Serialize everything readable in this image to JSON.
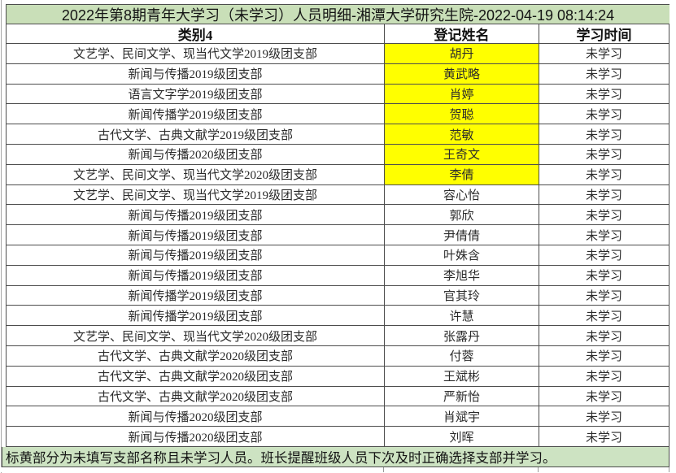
{
  "title": "2022年第8期青年大学习（未学习）人员明细-湘潭大学研究生院-2022-04-19 08:14:24",
  "table": {
    "columns": [
      "类别4",
      "登记姓名",
      "学习时间"
    ],
    "rows": [
      {
        "category": "文艺学、民间文学、现当代文学2019级团支部",
        "name": "胡丹",
        "status": "未学习",
        "highlighted": true
      },
      {
        "category": "新闻与传播2019级团支部",
        "name": "黄武略",
        "status": "未学习",
        "highlighted": true
      },
      {
        "category": "语言文字学2019级团支部",
        "name": "肖婷",
        "status": "未学习",
        "highlighted": true
      },
      {
        "category": "新闻传播学2019级团支部",
        "name": "贺聪",
        "status": "未学习",
        "highlighted": true
      },
      {
        "category": "古代文学、古典文献学2019级团支部",
        "name": "范敏",
        "status": "未学习",
        "highlighted": true
      },
      {
        "category": "新闻与传播2020级团支部",
        "name": "王奇文",
        "status": "未学习",
        "highlighted": true
      },
      {
        "category": "文艺学、民间文学、现当代文学2020级团支部",
        "name": "李倩",
        "status": "未学习",
        "highlighted": true
      },
      {
        "category": "文艺学、民间文学、现当代文学2019级团支部",
        "name": "容心怡",
        "status": "未学习",
        "highlighted": false
      },
      {
        "category": "新闻与传播2019级团支部",
        "name": "郭欣",
        "status": "未学习",
        "highlighted": false
      },
      {
        "category": "新闻与传播2019级团支部",
        "name": "尹倩倩",
        "status": "未学习",
        "highlighted": false
      },
      {
        "category": "新闻与传播2019级团支部",
        "name": "叶姝含",
        "status": "未学习",
        "highlighted": false
      },
      {
        "category": "新闻与传播2019级团支部",
        "name": "李旭华",
        "status": "未学习",
        "highlighted": false
      },
      {
        "category": "新闻传播学2019级团支部",
        "name": "官其玲",
        "status": "未学习",
        "highlighted": false
      },
      {
        "category": "新闻传播学2019级团支部",
        "name": "许慧",
        "status": "未学习",
        "highlighted": false
      },
      {
        "category": "文艺学、民间文学、现当代文学2020级团支部",
        "name": "张露丹",
        "status": "未学习",
        "highlighted": false
      },
      {
        "category": "古代文学、古典文献学2020级团支部",
        "name": "付蓉",
        "status": "未学习",
        "highlighted": false
      },
      {
        "category": "古代文学、古典文献学2020级团支部",
        "name": "王斌彬",
        "status": "未学习",
        "highlighted": false
      },
      {
        "category": "古代文学、古典文献学2020级团支部",
        "name": "严新怡",
        "status": "未学习",
        "highlighted": false
      },
      {
        "category": "新闻与传播2020级团支部",
        "name": "肖斌宇",
        "status": "未学习",
        "highlighted": false
      },
      {
        "category": "新闻与传播2020级团支部",
        "name": "刘晖",
        "status": "未学习",
        "highlighted": false
      }
    ]
  },
  "footer_note": "标黄部分为未填写支部名称且未学习人员。班长提醒班级人员下次及时正确选择支部并学习。",
  "colors": {
    "title_bg": "#c9dfb8",
    "footer_bg": "#cde3c2",
    "highlight": "#ffff00",
    "grid": "#4d4d4d"
  }
}
